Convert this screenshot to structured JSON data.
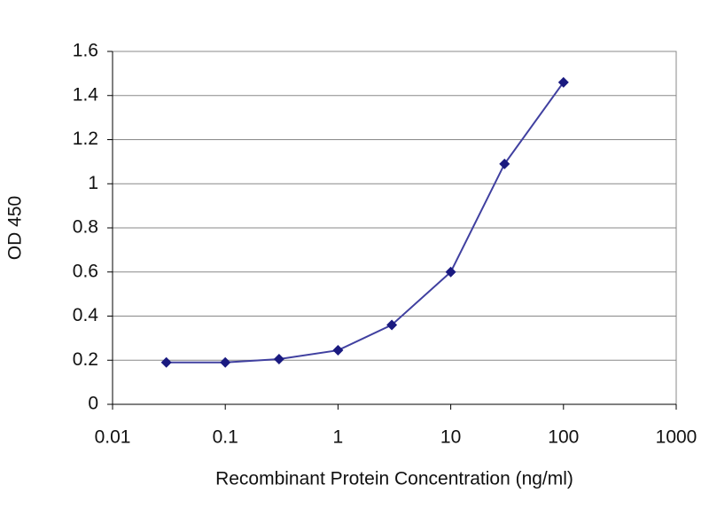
{
  "chart_data": {
    "type": "line",
    "x_label": "Recombinant Protein Concentration (ng/ml)",
    "y_label": "OD 450",
    "x": [
      0.03,
      0.1,
      0.3,
      1,
      3,
      10,
      30,
      100
    ],
    "values": [
      0.19,
      0.19,
      0.205,
      0.245,
      0.36,
      0.6,
      1.09,
      1.46
    ],
    "color": "#1a1a80",
    "line_color": "#4040a0",
    "x_log": true,
    "xlim": [
      0.01,
      1000
    ],
    "xticks": [
      0.01,
      0.1,
      1,
      10,
      100,
      1000
    ],
    "ylim": [
      0,
      1.6
    ],
    "yticks": [
      0,
      0.2,
      0.4,
      0.6,
      0.8,
      1,
      1.2,
      1.4,
      1.6
    ],
    "grid": true
  }
}
